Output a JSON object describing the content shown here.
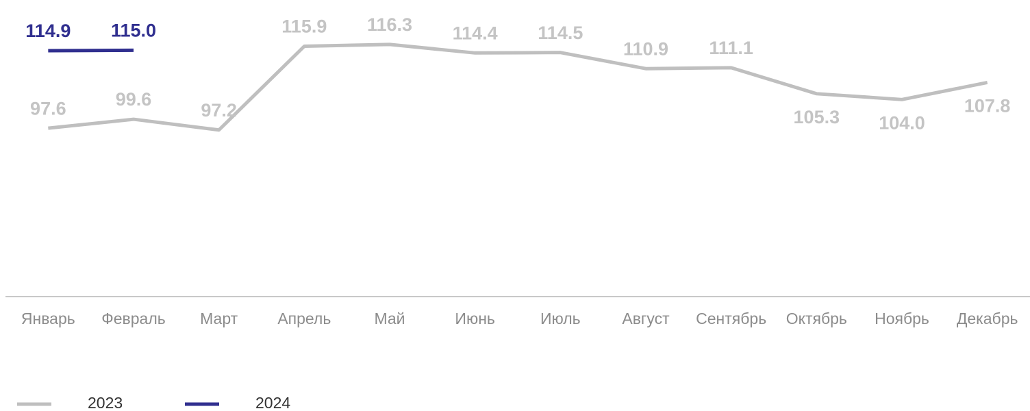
{
  "chart_data": {
    "type": "line",
    "categories": [
      "Январь",
      "Февраль",
      "Март",
      "Апрель",
      "Май",
      "Июнь",
      "Июль",
      "Август",
      "Сентябрь",
      "Октябрь",
      "Ноябрь",
      "Декабрь"
    ],
    "series": [
      {
        "name": "2023",
        "color": "#bfbfbf",
        "values": [
          97.6,
          99.6,
          97.2,
          115.9,
          116.3,
          114.4,
          114.5,
          110.9,
          111.1,
          105.3,
          104.0,
          107.8
        ],
        "value_labels": [
          "97.6",
          "99.6",
          "97.2",
          "115.9",
          "116.3",
          "114.4",
          "114.5",
          "110.9",
          "111.1",
          "105.3",
          "104.0",
          "107.8"
        ]
      },
      {
        "name": "2024",
        "color": "#302f8f",
        "values": [
          114.9,
          115.0,
          null,
          null,
          null,
          null,
          null,
          null,
          null,
          null,
          null,
          null
        ],
        "value_labels": [
          "114.9",
          "115.0",
          null,
          null,
          null,
          null,
          null,
          null,
          null,
          null,
          null,
          null
        ]
      }
    ],
    "ylim": [
      60,
      125
    ]
  }
}
